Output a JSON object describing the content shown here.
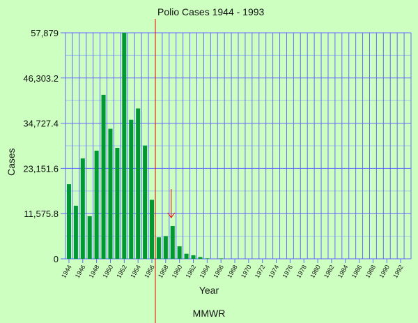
{
  "chart_data": {
    "type": "bar",
    "title": "Polio Cases 1944 - 1993",
    "xlabel": "Year",
    "ylabel": "Cases",
    "source": "MMWR",
    "ylim": [
      0,
      57879
    ],
    "yticks": [
      "57,879",
      "46,303.2",
      "34,727.4",
      "23,151.6",
      "11,575.8",
      "0"
    ],
    "ytick_values": [
      57879,
      46303.2,
      34727.4,
      23151.6,
      11575.8,
      0
    ],
    "xtick_labels": [
      "1944",
      "1946",
      "1948",
      "1950",
      "1952",
      "1954",
      "1956",
      "1958",
      "1960",
      "1962",
      "1964",
      "1966",
      "1968",
      "1970",
      "1972",
      "1974",
      "1976",
      "1978",
      "1980",
      "1982",
      "1984",
      "1986",
      "1988",
      "1990",
      "1992"
    ],
    "categories": [
      1944,
      1945,
      1946,
      1947,
      1948,
      1949,
      1950,
      1951,
      1952,
      1953,
      1954,
      1955,
      1956,
      1957,
      1958,
      1959,
      1960,
      1961,
      1962,
      1963,
      1964,
      1965,
      1966,
      1967,
      1968,
      1969,
      1970,
      1971,
      1972,
      1973,
      1974,
      1975,
      1976,
      1977,
      1978,
      1979,
      1980,
      1981,
      1982,
      1983,
      1984,
      1985,
      1986,
      1987,
      1988,
      1989,
      1990,
      1991,
      1992,
      1993
    ],
    "values": [
      19100,
      13600,
      25700,
      10900,
      27700,
      42000,
      33300,
      28400,
      57879,
      35600,
      38500,
      29000,
      15100,
      5500,
      5800,
      8400,
      3200,
      1300,
      900,
      450,
      120,
      60,
      110,
      40,
      50,
      20,
      30,
      20,
      30,
      10,
      10,
      10,
      10,
      20,
      10,
      30,
      10,
      10,
      10,
      10,
      10,
      10,
      10,
      10,
      10,
      10,
      10,
      10,
      10,
      10
    ],
    "annotations": [
      {
        "type": "vertical-line",
        "x": 1956,
        "color": "#ee0000",
        "label": "vaccine introduction marker"
      },
      {
        "type": "arrow",
        "x": 1959,
        "color": "#ee0000",
        "direction": "down"
      }
    ],
    "grid": true,
    "colors": {
      "bar": "#009933",
      "grid": "#6666ff",
      "minor_grid": "#a0c8e0",
      "background": "#ccffc0",
      "marker": "#ee0000"
    }
  }
}
